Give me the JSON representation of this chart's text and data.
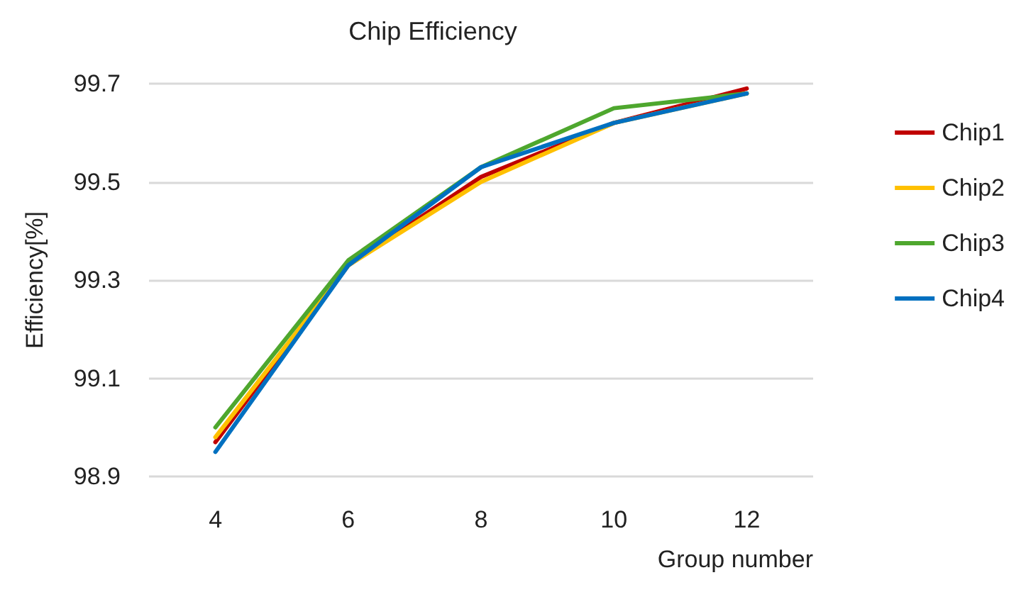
{
  "chart_data": {
    "type": "line",
    "title": "Chip Efficiency",
    "xlabel": "Group number",
    "ylabel": "Efficiency[%]",
    "categories": [
      "4",
      "6",
      "8",
      "10",
      "12"
    ],
    "series": [
      {
        "name": "Chip1",
        "color": "#c00000",
        "values": [
          98.97,
          99.33,
          99.51,
          99.62,
          99.69
        ]
      },
      {
        "name": "Chip2",
        "color": "#ffc000",
        "values": [
          98.98,
          99.33,
          99.5,
          99.62,
          99.68
        ]
      },
      {
        "name": "Chip3",
        "color": "#4ea72e",
        "values": [
          99.0,
          99.34,
          99.53,
          99.65,
          99.68
        ]
      },
      {
        "name": "Chip4",
        "color": "#0070c0",
        "values": [
          98.95,
          99.33,
          99.53,
          99.62,
          99.68
        ]
      }
    ],
    "ylim": [
      98.9,
      99.7
    ],
    "yticks": [
      98.9,
      99.1,
      99.3,
      99.5,
      99.7
    ],
    "grid": "y",
    "legend": "right",
    "marker": "none",
    "line_style": "solid"
  }
}
